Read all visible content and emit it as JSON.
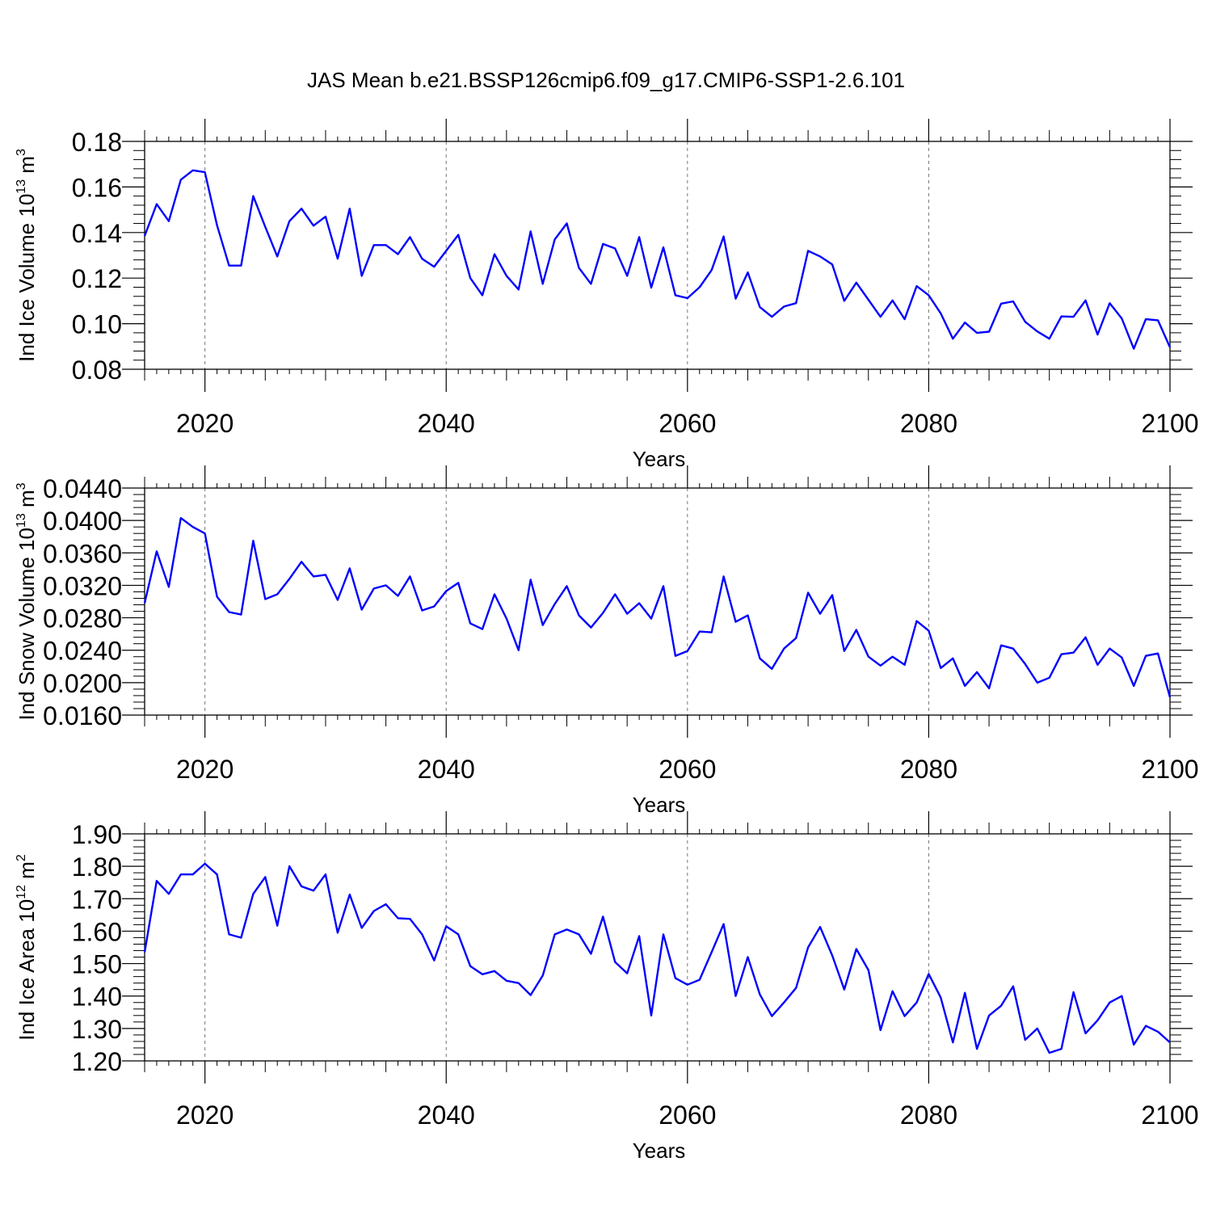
{
  "chart_data": {
    "title": "JAS Mean b.e21.BSSP126cmip6.f09_g17.CMIP6-SSP1-2.6.101",
    "line_color": "#0000ff",
    "panels": [
      {
        "type": "line",
        "ylabel": "Ind Ice Volume 10",
        "ylabel_exp": "13",
        "ylabel_unit": " m",
        "ylabel_unit_exp": "3",
        "xlabel": "Years",
        "ylim": [
          0.08,
          0.18
        ],
        "yticks": [
          0.08,
          0.1,
          0.12,
          0.14,
          0.16,
          0.18
        ],
        "ytick_labels": [
          "0.08",
          "0.10",
          "0.12",
          "0.14",
          "0.16",
          "0.18"
        ],
        "xticks": [
          2020,
          2040,
          2060,
          2080,
          2100
        ],
        "xtick_labels": [
          "2020",
          "2040",
          "2060",
          "2080",
          "2100"
        ],
        "xlim": [
          2015,
          2100
        ],
        "x_start": 2015,
        "values": [
          0.1385,
          0.1525,
          0.145,
          0.1632,
          0.1673,
          0.1665,
          0.1432,
          0.1255,
          0.1255,
          0.156,
          0.1425,
          0.1295,
          0.145,
          0.1505,
          0.143,
          0.147,
          0.1285,
          0.1505,
          0.121,
          0.1345,
          0.1345,
          0.1305,
          0.138,
          0.1285,
          0.125,
          0.132,
          0.139,
          0.12,
          0.1125,
          0.1305,
          0.121,
          0.115,
          0.1405,
          0.1175,
          0.137,
          0.144,
          0.1245,
          0.1175,
          0.135,
          0.133,
          0.121,
          0.138,
          0.1158,
          0.1335,
          0.1125,
          0.1112,
          0.116,
          0.1235,
          0.1383,
          0.111,
          0.1225,
          0.1073,
          0.103,
          0.1075,
          0.109,
          0.132,
          0.1295,
          0.126,
          0.11,
          0.118,
          0.1105,
          0.103,
          0.1102,
          0.102,
          0.1165,
          0.1125,
          0.1045,
          0.0934,
          0.1005,
          0.096,
          0.0965,
          0.1088,
          0.1098,
          0.1008,
          0.0966,
          0.0934,
          0.1032,
          0.103,
          0.1102,
          0.0952,
          0.109,
          0.1023,
          0.089,
          0.102,
          0.1015,
          0.0896
        ]
      },
      {
        "type": "line",
        "ylabel": "Ind Snow Volume 10",
        "ylabel_exp": "13",
        "ylabel_unit": " m",
        "ylabel_unit_exp": "3",
        "xlabel": "Years",
        "ylim": [
          0.016,
          0.044
        ],
        "yticks": [
          0.016,
          0.02,
          0.024,
          0.028,
          0.032,
          0.036,
          0.04,
          0.044
        ],
        "ytick_labels": [
          "0.0160",
          "0.0200",
          "0.0240",
          "0.0280",
          "0.0320",
          "0.0360",
          "0.0400",
          "0.0440"
        ],
        "xticks": [
          2020,
          2040,
          2060,
          2080,
          2100
        ],
        "xtick_labels": [
          "2020",
          "2040",
          "2060",
          "2080",
          "2100"
        ],
        "xlim": [
          2015,
          2100
        ],
        "x_start": 2015,
        "values": [
          0.0298,
          0.0362,
          0.0318,
          0.0403,
          0.0392,
          0.0384,
          0.0306,
          0.0287,
          0.0284,
          0.0375,
          0.0303,
          0.0309,
          0.0328,
          0.0349,
          0.0331,
          0.0333,
          0.0302,
          0.0341,
          0.029,
          0.0316,
          0.032,
          0.0307,
          0.0331,
          0.0289,
          0.0294,
          0.0313,
          0.0323,
          0.0273,
          0.0266,
          0.0309,
          0.0279,
          0.024,
          0.0327,
          0.0271,
          0.0297,
          0.0319,
          0.0283,
          0.0268,
          0.0286,
          0.0309,
          0.0285,
          0.0298,
          0.0279,
          0.0319,
          0.0233,
          0.0239,
          0.0263,
          0.0262,
          0.0331,
          0.0275,
          0.0283,
          0.023,
          0.0217,
          0.0242,
          0.0255,
          0.0311,
          0.0285,
          0.0308,
          0.0239,
          0.0265,
          0.0232,
          0.0221,
          0.0232,
          0.0222,
          0.0276,
          0.0264,
          0.0218,
          0.023,
          0.0196,
          0.0213,
          0.0193,
          0.0246,
          0.0242,
          0.0223,
          0.02,
          0.0206,
          0.0235,
          0.0237,
          0.0256,
          0.0222,
          0.0242,
          0.0231,
          0.0196,
          0.0233,
          0.0236,
          0.0182
        ]
      },
      {
        "type": "line",
        "ylabel": "Ind Ice Area 10",
        "ylabel_exp": "12",
        "ylabel_unit": " m",
        "ylabel_unit_exp": "2",
        "xlabel": "Years",
        "ylim": [
          1.2,
          1.9
        ],
        "yticks": [
          1.2,
          1.3,
          1.4,
          1.5,
          1.6,
          1.7,
          1.8,
          1.9
        ],
        "ytick_labels": [
          "1.20",
          "1.30",
          "1.40",
          "1.50",
          "1.60",
          "1.70",
          "1.80",
          "1.90"
        ],
        "xticks": [
          2020,
          2040,
          2060,
          2080,
          2100
        ],
        "xtick_labels": [
          "2020",
          "2040",
          "2060",
          "2080",
          "2100"
        ],
        "xlim": [
          2015,
          2100
        ],
        "x_start": 2015,
        "values": [
          1.535,
          1.755,
          1.715,
          1.775,
          1.775,
          1.808,
          1.775,
          1.59,
          1.58,
          1.715,
          1.767,
          1.617,
          1.8,
          1.738,
          1.725,
          1.775,
          1.595,
          1.713,
          1.61,
          1.662,
          1.683,
          1.64,
          1.638,
          1.59,
          1.51,
          1.615,
          1.59,
          1.492,
          1.467,
          1.477,
          1.447,
          1.44,
          1.403,
          1.463,
          1.59,
          1.605,
          1.59,
          1.53,
          1.645,
          1.505,
          1.47,
          1.585,
          1.34,
          1.59,
          1.455,
          1.435,
          1.45,
          1.535,
          1.622,
          1.4,
          1.52,
          1.405,
          1.338,
          1.38,
          1.425,
          1.55,
          1.613,
          1.525,
          1.42,
          1.545,
          1.48,
          1.295,
          1.415,
          1.338,
          1.38,
          1.468,
          1.395,
          1.257,
          1.41,
          1.237,
          1.34,
          1.37,
          1.43,
          1.265,
          1.3,
          1.225,
          1.237,
          1.412,
          1.285,
          1.325,
          1.38,
          1.4,
          1.25,
          1.308,
          1.29,
          1.257
        ]
      }
    ]
  }
}
